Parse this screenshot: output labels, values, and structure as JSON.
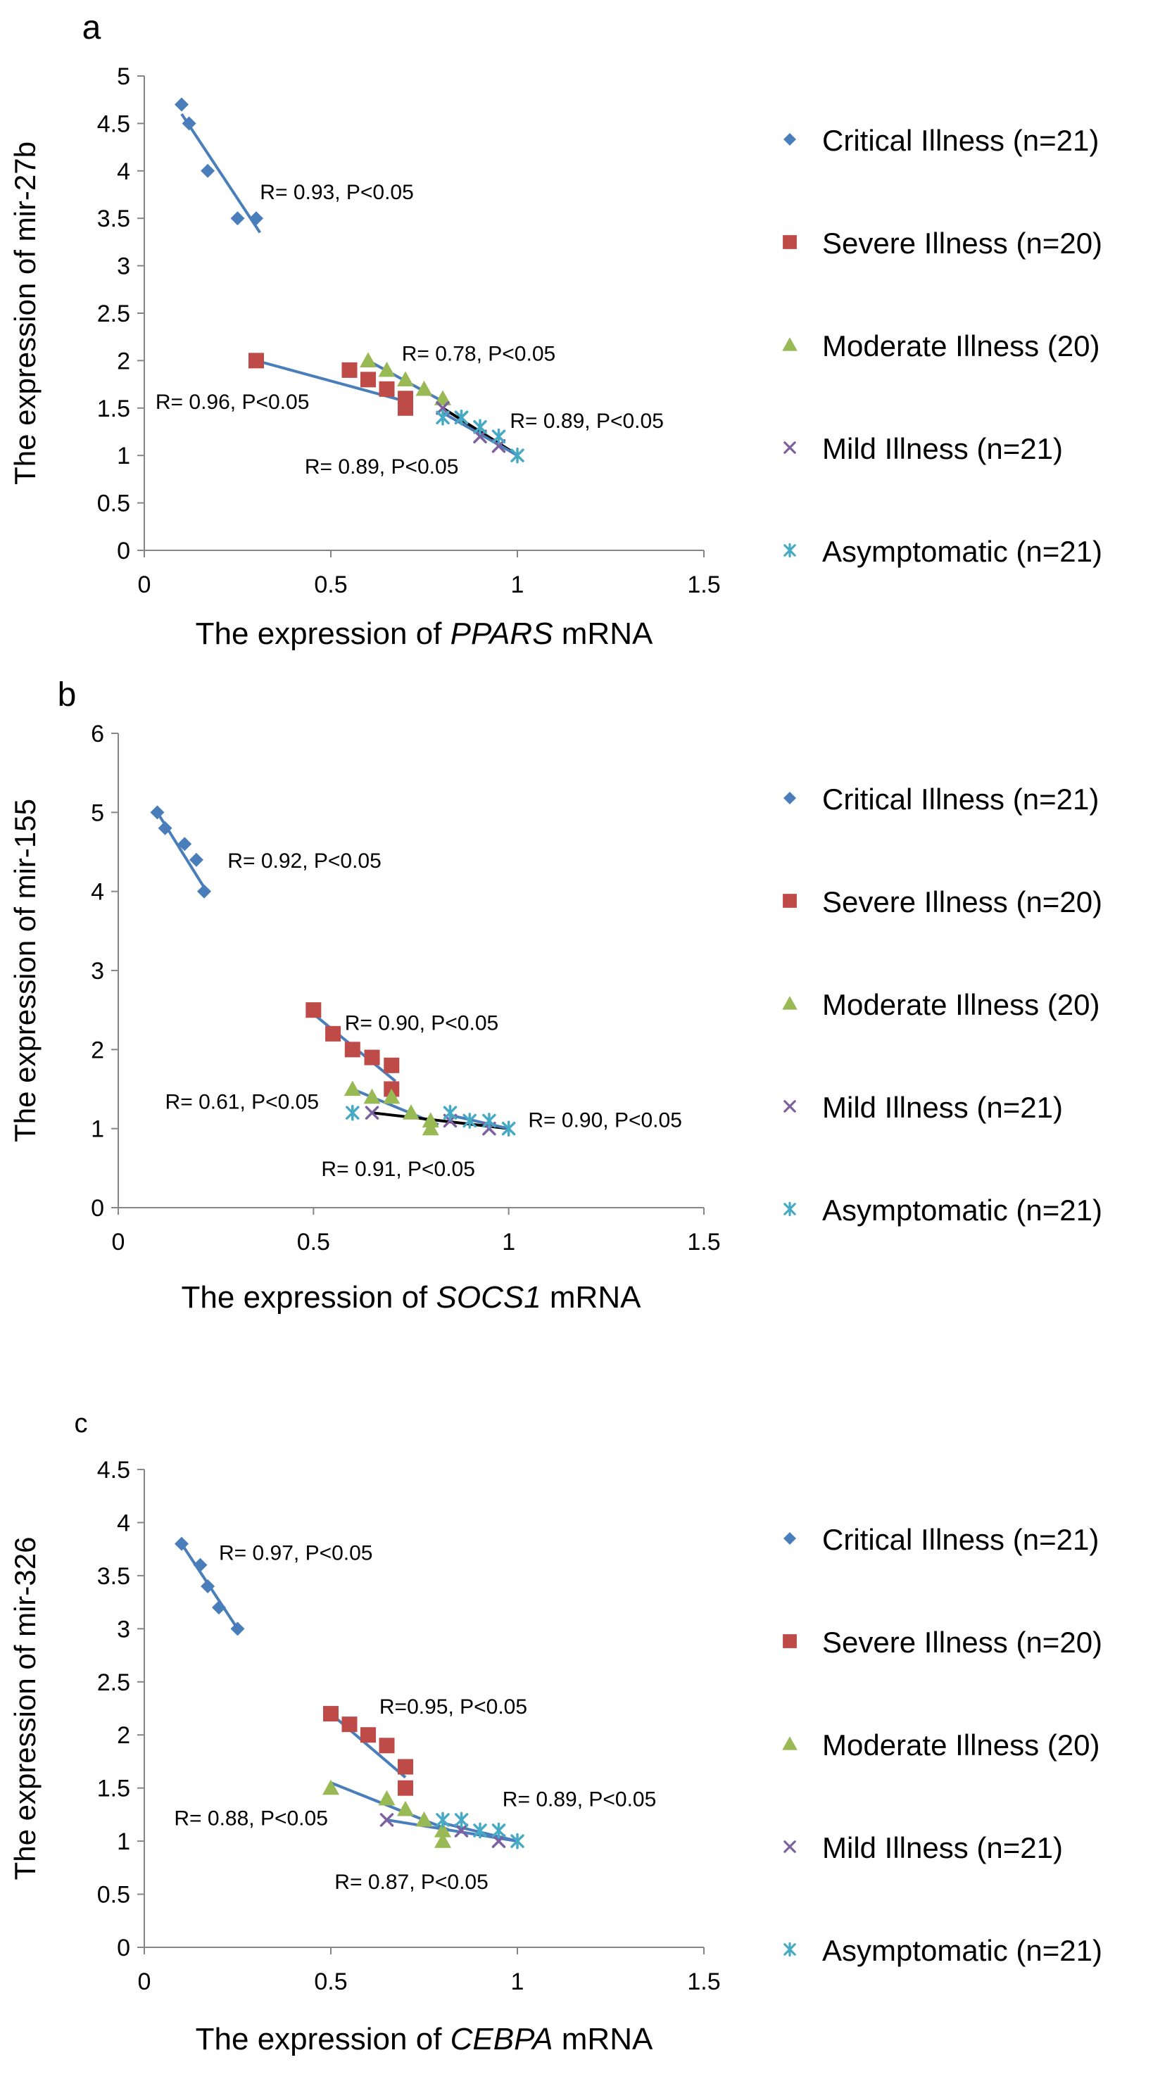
{
  "colors": {
    "critical": "#4a7ebb",
    "severe": "#be4b48",
    "moderate": "#98b954",
    "mild": "#7d60a0",
    "asymptomatic": "#46aac5",
    "fit_blue": "#4a7ebb",
    "fit_black": "#000000",
    "axis": "#868686"
  },
  "legend": [
    {
      "key": "critical",
      "label": "Critical Illness (n=21)",
      "marker": "diamond"
    },
    {
      "key": "severe",
      "label": "Severe Illness (n=20)",
      "marker": "square"
    },
    {
      "key": "moderate",
      "label": "Moderate Illness (20)",
      "marker": "triangle"
    },
    {
      "key": "mild",
      "label": "Mild Illness (n=21)",
      "marker": "x"
    },
    {
      "key": "asymptomatic",
      "label": "Asymptomatic (n=21)",
      "marker": "star"
    }
  ],
  "chart_data": [
    {
      "type": "scatter",
      "panel_label": "a",
      "ylabel": "The expression of  mir-27b",
      "xlabel_pre": "The expression of ",
      "xlabel_gene": "PPARS",
      "xlabel_post": " mRNA",
      "xlim": [
        0,
        1.5
      ],
      "ylim": [
        0,
        5
      ],
      "xticks": [
        "0",
        "0.5",
        "1",
        "1.5"
      ],
      "xtick_values": [
        0,
        0.5,
        1,
        1.5
      ],
      "yticks": [
        "0",
        "0.5",
        "1",
        "1.5",
        "2",
        "2.5",
        "3",
        "3.5",
        "4",
        "4.5",
        "5"
      ],
      "ytick_values": [
        0,
        0.5,
        1,
        1.5,
        2,
        2.5,
        3,
        3.5,
        4,
        4.5,
        5
      ],
      "series": [
        {
          "name": "Critical Illness (n=21)",
          "key": "critical",
          "x": [
            0.1,
            0.12,
            0.17,
            0.25,
            0.3
          ],
          "y": [
            4.7,
            4.5,
            4.0,
            3.5,
            3.5
          ]
        },
        {
          "name": "Severe Illness (n=20)",
          "key": "severe",
          "x": [
            0.3,
            0.55,
            0.6,
            0.65,
            0.7,
            0.7
          ],
          "y": [
            2.0,
            1.9,
            1.8,
            1.7,
            1.5,
            1.6
          ]
        },
        {
          "name": "Moderate Illness (20)",
          "key": "moderate",
          "x": [
            0.6,
            0.65,
            0.7,
            0.75,
            0.8
          ],
          "y": [
            2.0,
            1.9,
            1.8,
            1.7,
            1.6
          ]
        },
        {
          "name": "Mild Illness (n=21)",
          "key": "mild",
          "x": [
            0.8,
            0.85,
            0.9,
            0.95
          ],
          "y": [
            1.5,
            1.4,
            1.2,
            1.1
          ]
        },
        {
          "name": "Asymptomatic (n=21)",
          "key": "asymptomatic",
          "x": [
            0.8,
            0.85,
            0.9,
            0.95,
            1.0
          ],
          "y": [
            1.4,
            1.4,
            1.3,
            1.2,
            1.0
          ]
        }
      ],
      "fits": [
        {
          "key": "critical",
          "color": "fit_blue",
          "x1": 0.1,
          "y1": 4.6,
          "x2": 0.31,
          "y2": 3.35
        },
        {
          "key": "severe",
          "color": "fit_blue",
          "x1": 0.3,
          "y1": 2.0,
          "x2": 0.72,
          "y2": 1.55
        },
        {
          "key": "moderate",
          "color": "fit_blue",
          "x1": 0.6,
          "y1": 2.0,
          "x2": 0.8,
          "y2": 1.57
        },
        {
          "key": "mild",
          "color": "fit_black",
          "x1": 0.8,
          "y1": 1.5,
          "x2": 0.99,
          "y2": 1.03
        },
        {
          "key": "asymptomatic",
          "color": "fit_blue",
          "x1": 0.8,
          "y1": 1.45,
          "x2": 1.0,
          "y2": 1.0
        }
      ],
      "annotations": [
        {
          "text": "R= 0.93, P<0.05",
          "x": 0.31,
          "y": 3.7
        },
        {
          "text": "R= 0.78, P<0.05",
          "x": 0.69,
          "y": 2.0
        },
        {
          "text": "R= 0.96, P<0.05",
          "x": 0.03,
          "y": 1.49
        },
        {
          "text": "R= 0.89, P<0.05",
          "x": 0.98,
          "y": 1.29
        },
        {
          "text": "R= 0.89, P<0.05",
          "x": 0.43,
          "y": 0.81
        }
      ]
    },
    {
      "type": "scatter",
      "panel_label": "b",
      "ylabel": "The expression of mir-155",
      "xlabel_pre": "The expression of ",
      "xlabel_gene": "SOCS1",
      "xlabel_post": " mRNA",
      "xlim": [
        0,
        1.5
      ],
      "ylim": [
        0,
        6
      ],
      "xticks": [
        "0",
        "0.5",
        "1",
        "1.5"
      ],
      "xtick_values": [
        0,
        0.5,
        1,
        1.5
      ],
      "yticks": [
        "0",
        "1",
        "2",
        "3",
        "4",
        "5",
        "6"
      ],
      "ytick_values": [
        0,
        1,
        2,
        3,
        4,
        5,
        6
      ],
      "series": [
        {
          "name": "Critical Illness (n=21)",
          "key": "critical",
          "x": [
            0.1,
            0.12,
            0.17,
            0.2,
            0.22
          ],
          "y": [
            5.0,
            4.8,
            4.6,
            4.4,
            4.0
          ]
        },
        {
          "name": "Severe Illness (n=20)",
          "key": "severe",
          "x": [
            0.5,
            0.55,
            0.6,
            0.65,
            0.7,
            0.7
          ],
          "y": [
            2.5,
            2.2,
            2.0,
            1.9,
            1.8,
            1.5
          ]
        },
        {
          "name": "Moderate Illness (20)",
          "key": "moderate",
          "x": [
            0.6,
            0.65,
            0.7,
            0.75,
            0.8,
            0.8
          ],
          "y": [
            1.5,
            1.4,
            1.4,
            1.2,
            1.1,
            1.0
          ]
        },
        {
          "name": "Mild Illness (n=21)",
          "key": "mild",
          "x": [
            0.65,
            0.85,
            0.95
          ],
          "y": [
            1.2,
            1.1,
            1.0
          ]
        },
        {
          "name": "Asymptomatic (n=21)",
          "key": "asymptomatic",
          "x": [
            0.6,
            0.85,
            0.9,
            0.95,
            1.0
          ],
          "y": [
            1.2,
            1.2,
            1.1,
            1.1,
            1.0
          ]
        }
      ],
      "fits": [
        {
          "key": "critical",
          "color": "fit_blue",
          "x1": 0.1,
          "y1": 5.0,
          "x2": 0.22,
          "y2": 4.05
        },
        {
          "key": "severe",
          "color": "fit_blue",
          "x1": 0.5,
          "y1": 2.45,
          "x2": 0.71,
          "y2": 1.6
        },
        {
          "key": "moderate",
          "color": "fit_blue",
          "x1": 0.6,
          "y1": 1.5,
          "x2": 0.82,
          "y2": 1.05
        },
        {
          "key": "mild",
          "color": "fit_black",
          "x1": 0.65,
          "y1": 1.2,
          "x2": 1.0,
          "y2": 1.0
        },
        {
          "key": "asymptomatic",
          "color": "fit_blue",
          "x1": 0.85,
          "y1": 1.17,
          "x2": 1.0,
          "y2": 1.0
        }
      ],
      "annotations": [
        {
          "text": "R= 0.92, P<0.05",
          "x": 0.28,
          "y": 4.3
        },
        {
          "text": "R= 0.90, P<0.05",
          "x": 0.58,
          "y": 2.25
        },
        {
          "text": "R= 0.61, P<0.05",
          "x": 0.12,
          "y": 1.25
        },
        {
          "text": "R= 0.90, P<0.05",
          "x": 1.05,
          "y": 1.02
        },
        {
          "text": "R= 0.91, P<0.05",
          "x": 0.52,
          "y": 0.4
        }
      ]
    },
    {
      "type": "scatter",
      "panel_label": "c",
      "ylabel": "The expression of mir-326",
      "xlabel_pre": "The expression of ",
      "xlabel_gene": "CEBPA",
      "xlabel_post": " mRNA",
      "xlim": [
        0,
        1.5
      ],
      "ylim": [
        0,
        4.5
      ],
      "xticks": [
        "0",
        "0.5",
        "1",
        "1.5"
      ],
      "xtick_values": [
        0,
        0.5,
        1,
        1.5
      ],
      "yticks": [
        "0",
        "0.5",
        "1",
        "1.5",
        "2",
        "2.5",
        "3",
        "3.5",
        "4",
        "4.5"
      ],
      "ytick_values": [
        0,
        0.5,
        1,
        1.5,
        2,
        2.5,
        3,
        3.5,
        4,
        4.5
      ],
      "series": [
        {
          "name": "Critical Illness (n=21)",
          "key": "critical",
          "x": [
            0.1,
            0.15,
            0.17,
            0.2,
            0.25
          ],
          "y": [
            3.8,
            3.6,
            3.4,
            3.2,
            3.0
          ]
        },
        {
          "name": "Severe Illness (n=20)",
          "key": "severe",
          "x": [
            0.5,
            0.55,
            0.6,
            0.65,
            0.7,
            0.7
          ],
          "y": [
            2.2,
            2.1,
            2.0,
            1.9,
            1.7,
            1.5
          ]
        },
        {
          "name": "Moderate Illness (20)",
          "key": "moderate",
          "x": [
            0.5,
            0.65,
            0.7,
            0.75,
            0.8,
            0.8
          ],
          "y": [
            1.5,
            1.4,
            1.3,
            1.2,
            1.1,
            1.0
          ]
        },
        {
          "name": "Mild Illness (n=21)",
          "key": "mild",
          "x": [
            0.65,
            0.85,
            0.95
          ],
          "y": [
            1.2,
            1.1,
            1.0
          ]
        },
        {
          "name": "Asymptomatic (n=21)",
          "key": "asymptomatic",
          "x": [
            0.8,
            0.85,
            0.9,
            0.95,
            1.0
          ],
          "y": [
            1.2,
            1.2,
            1.1,
            1.1,
            1.0
          ]
        }
      ],
      "fits": [
        {
          "key": "critical",
          "color": "fit_blue",
          "x1": 0.1,
          "y1": 3.8,
          "x2": 0.25,
          "y2": 3.0
        },
        {
          "key": "severe",
          "color": "fit_blue",
          "x1": 0.5,
          "y1": 2.2,
          "x2": 0.7,
          "y2": 1.6
        },
        {
          "key": "moderate",
          "color": "fit_blue",
          "x1": 0.5,
          "y1": 1.55,
          "x2": 0.82,
          "y2": 1.1
        },
        {
          "key": "mild",
          "color": "fit_blue",
          "x1": 0.65,
          "y1": 1.2,
          "x2": 1.0,
          "y2": 1.0
        },
        {
          "key": "asymptomatic",
          "color": "fit_blue",
          "x1": 0.8,
          "y1": 1.17,
          "x2": 1.0,
          "y2": 1.0
        }
      ],
      "annotations": [
        {
          "text": "R= 0.97, P<0.05",
          "x": 0.2,
          "y": 3.65
        },
        {
          "text": "R=0.95, P<0.05",
          "x": 0.63,
          "y": 2.2
        },
        {
          "text": "R= 0.88, P<0.05",
          "x": 0.08,
          "y": 1.15
        },
        {
          "text": "R= 0.89, P<0.05",
          "x": 0.96,
          "y": 1.33
        },
        {
          "text": "R= 0.87, P<0.05",
          "x": 0.51,
          "y": 0.55
        }
      ]
    }
  ]
}
